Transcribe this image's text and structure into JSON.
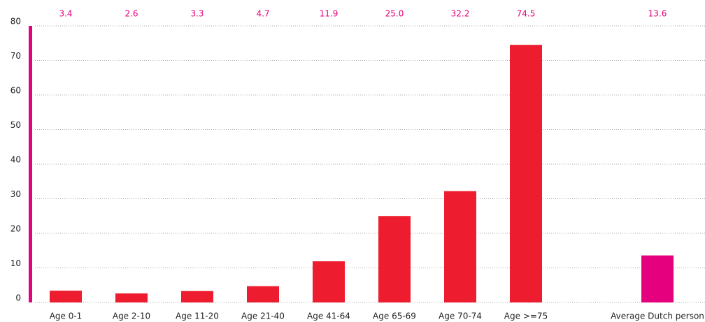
{
  "chart_data": {
    "type": "bar",
    "categories": [
      "Age 0-1",
      "Age 2-10",
      "Age 11-20",
      "Age 21-40",
      "Age 41-64",
      "Age 65-69",
      "Age 70-74",
      "Age >=75",
      "Average Dutch person"
    ],
    "values": [
      3.4,
      2.6,
      3.3,
      4.7,
      11.9,
      25.0,
      32.2,
      74.5,
      13.6
    ],
    "value_labels": [
      "3.4",
      "2.6",
      "3.3",
      "4.7",
      "11.9",
      "25.0",
      "32.2",
      "74.5",
      "13.6"
    ],
    "colors": [
      "#ed1c2e",
      "#ed1c2e",
      "#ed1c2e",
      "#ed1c2e",
      "#ed1c2e",
      "#ed1c2e",
      "#ed1c2e",
      "#ed1c2e",
      "#e5007e"
    ],
    "ylim": [
      0,
      80
    ],
    "yticks": [
      0,
      10,
      20,
      30,
      40,
      50,
      60,
      70,
      80
    ],
    "grid": true
  }
}
